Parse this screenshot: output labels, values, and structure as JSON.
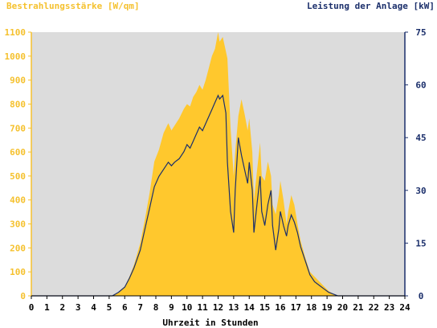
{
  "chart_data": {
    "type": "area",
    "title_left": "Bestrahlungsstärke [W/qm]",
    "title_right": "Leistung der Anlage [kW]",
    "xlabel": "Uhrzeit in Stunden",
    "x_ticks": [
      "0",
      "1",
      "2",
      "3",
      "4",
      "5",
      "6",
      "7",
      "8",
      "9",
      "10",
      "11",
      "12",
      "13",
      "14",
      "15",
      "16",
      "17",
      "18",
      "19",
      "20",
      "21",
      "22",
      "23",
      "24"
    ],
    "y_left_ticks": [
      "0",
      "100",
      "200",
      "300",
      "400",
      "500",
      "600",
      "700",
      "800",
      "900",
      "1000",
      "1100"
    ],
    "y_right_ticks": [
      "0",
      "15",
      "30",
      "45",
      "60",
      "75"
    ],
    "xlim": [
      0,
      24
    ],
    "ylim_left": [
      0,
      1100
    ],
    "ylim_right": [
      0,
      75
    ],
    "grid": false,
    "colors": {
      "plot_background": "#dcdcdc",
      "irradiance_fill": "#ffc82d",
      "power_line": "#1b2f6b",
      "left_axis": "#f5c12e",
      "right_axis": "#1b2f6b"
    },
    "series": [
      {
        "axis": "left",
        "style": "area",
        "x": [
          0,
          5.2,
          5.6,
          6.0,
          6.3,
          6.6,
          7.0,
          7.3,
          7.6,
          7.9,
          8.2,
          8.5,
          8.8,
          9.0,
          9.2,
          9.5,
          9.8,
          10.0,
          10.2,
          10.4,
          10.6,
          10.8,
          11.0,
          11.2,
          11.4,
          11.6,
          11.8,
          12.0,
          12.1,
          12.3,
          12.5,
          12.6,
          12.8,
          13.0,
          13.1,
          13.3,
          13.5,
          13.7,
          13.9,
          14.0,
          14.2,
          14.3,
          14.5,
          14.7,
          14.8,
          15.0,
          15.2,
          15.4,
          15.5,
          15.7,
          15.9,
          16.0,
          16.2,
          16.4,
          16.5,
          16.7,
          16.9,
          17.1,
          17.3,
          17.6,
          17.9,
          18.2,
          18.5,
          18.8,
          19.1,
          19.4,
          19.7,
          20.0,
          24
        ],
        "values": [
          0,
          0,
          15,
          40,
          80,
          130,
          220,
          320,
          430,
          560,
          610,
          680,
          720,
          690,
          710,
          740,
          780,
          800,
          790,
          830,
          850,
          880,
          860,
          900,
          950,
          1000,
          1030,
          1100,
          1060,
          1080,
          1020,
          990,
          700,
          500,
          600,
          750,
          820,
          760,
          690,
          740,
          600,
          400,
          520,
          640,
          500,
          480,
          560,
          500,
          380,
          340,
          420,
          480,
          400,
          300,
          350,
          420,
          380,
          300,
          230,
          160,
          100,
          80,
          60,
          40,
          20,
          8,
          0,
          0,
          0
        ]
      },
      {
        "axis": "right",
        "style": "line",
        "x": [
          0,
          5.2,
          5.6,
          6.0,
          6.3,
          6.6,
          7.0,
          7.3,
          7.6,
          7.9,
          8.2,
          8.5,
          8.8,
          9.0,
          9.2,
          9.5,
          9.8,
          10.0,
          10.2,
          10.4,
          10.6,
          10.8,
          11.0,
          11.2,
          11.4,
          11.6,
          11.8,
          12.0,
          12.1,
          12.3,
          12.5,
          12.6,
          12.8,
          13.0,
          13.1,
          13.3,
          13.5,
          13.7,
          13.9,
          14.0,
          14.2,
          14.3,
          14.5,
          14.7,
          14.8,
          15.0,
          15.2,
          15.4,
          15.5,
          15.7,
          15.9,
          16.0,
          16.2,
          16.4,
          16.5,
          16.7,
          16.9,
          17.1,
          17.3,
          17.6,
          17.9,
          18.2,
          18.5,
          18.8,
          19.1,
          19.4,
          19.7,
          20.0,
          24
        ],
        "values": [
          0,
          0,
          1,
          2.5,
          5,
          8,
          13,
          19,
          25,
          31,
          34,
          36,
          38,
          37,
          38,
          39,
          41,
          43,
          42,
          44,
          46,
          48,
          47,
          49,
          51,
          53,
          55,
          57,
          56,
          57,
          52,
          38,
          24,
          18,
          30,
          45,
          40,
          36,
          32,
          38,
          30,
          18,
          26,
          34,
          24,
          20,
          26,
          30,
          20,
          13,
          19,
          24,
          20,
          17,
          20,
          23,
          21,
          18,
          14,
          10,
          6,
          4,
          3,
          2,
          1,
          0.5,
          0,
          0,
          0
        ]
      }
    ]
  }
}
